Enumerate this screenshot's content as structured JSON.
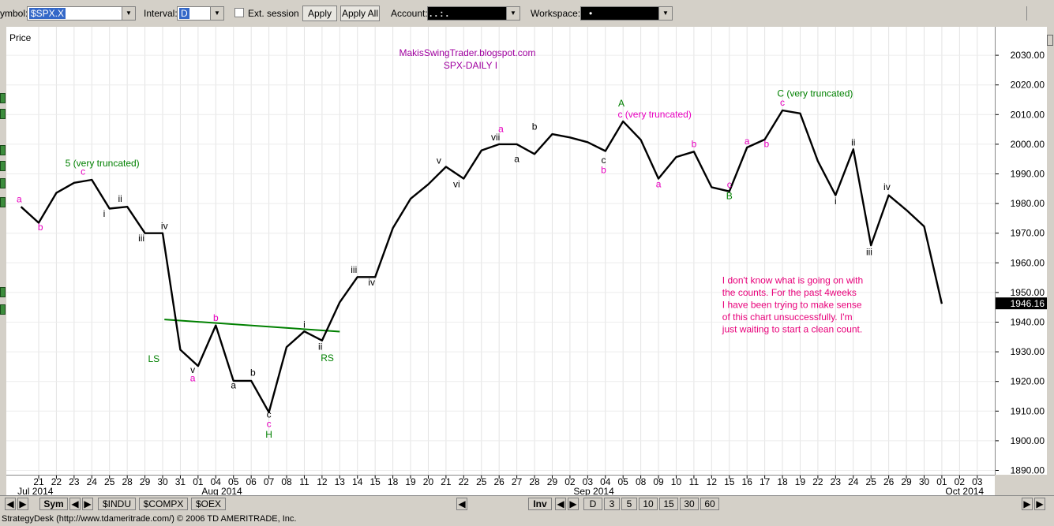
{
  "toolbar": {
    "symbol_label": "ymbol:",
    "symbol_value": "$SPX.X",
    "interval_label": "Interval:",
    "interval_value": "D",
    "ext_session_label": "Ext. session",
    "apply_label": "Apply",
    "apply_all_label": "Apply All",
    "account_label": "Account:",
    "account_value": ". .   :   .",
    "workspace_label": "Workspace:",
    "workspace_value": "•"
  },
  "chart_data": {
    "type": "line",
    "title": "MakisSwingTrader.blogspot.com",
    "subtitle": "SPX-DAILY  I",
    "ylabel": "Price",
    "ylim": [
      1886,
      2040
    ],
    "y_ticks": [
      1890,
      1900,
      1910,
      1920,
      1930,
      1940,
      1950,
      1960,
      1970,
      1980,
      1990,
      2000,
      2010,
      2020,
      2030
    ],
    "y_tick_labels": [
      "1890.00",
      "1900.00",
      "1910.00",
      "1920.00",
      "1930.00",
      "1940.00",
      "1950.00",
      "1960.00",
      "1970.00",
      "1980.00",
      "1990.00",
      "2000.00",
      "2010.00",
      "2020.00",
      "2030.00"
    ],
    "last_price_label": "1946.16",
    "x_labels": [
      "21",
      "22",
      "23",
      "24",
      "25",
      "28",
      "29",
      "30",
      "31",
      "01",
      "04",
      "05",
      "06",
      "07",
      "08",
      "11",
      "12",
      "13",
      "14",
      "15",
      "18",
      "19",
      "20",
      "21",
      "22",
      "25",
      "26",
      "27",
      "28",
      "29",
      "02",
      "03",
      "04",
      "05",
      "08",
      "09",
      "10",
      "11",
      "12",
      "15",
      "16",
      "17",
      "18",
      "19",
      "22",
      "23",
      "24",
      "25",
      "26",
      "29",
      "30",
      "01",
      "02",
      "03"
    ],
    "month_labels": [
      {
        "label": "Jul 2014",
        "index": -1.2
      },
      {
        "label": "Aug 2014",
        "index": 9.2
      },
      {
        "label": "Sep 2014",
        "index": 30.2
      },
      {
        "label": "Oct 2014",
        "index": 51.2
      }
    ],
    "series": [
      {
        "values": [
          {
            "i": -1,
            "v": 1978.9
          },
          {
            "i": 0,
            "v": 1973.5
          },
          {
            "i": 1,
            "v": 1983.6
          },
          {
            "i": 2,
            "v": 1987.0
          },
          {
            "i": 3,
            "v": 1988.0
          },
          {
            "i": 4,
            "v": 1978.3
          },
          {
            "i": 5,
            "v": 1978.9
          },
          {
            "i": 6,
            "v": 1970.0
          },
          {
            "i": 7,
            "v": 1970.0
          },
          {
            "i": 8,
            "v": 1930.7
          },
          {
            "i": 9,
            "v": 1925.2
          },
          {
            "i": 10,
            "v": 1938.9
          },
          {
            "i": 11,
            "v": 1920.2
          },
          {
            "i": 12,
            "v": 1920.2
          },
          {
            "i": 13,
            "v": 1909.6
          },
          {
            "i": 14,
            "v": 1931.6
          },
          {
            "i": 15,
            "v": 1936.9
          },
          {
            "i": 16,
            "v": 1933.8
          },
          {
            "i": 17,
            "v": 1946.7
          },
          {
            "i": 18,
            "v": 1955.2
          },
          {
            "i": 19,
            "v": 1955.2
          },
          {
            "i": 20,
            "v": 1971.7
          },
          {
            "i": 21,
            "v": 1981.6
          },
          {
            "i": 22,
            "v": 1986.5
          },
          {
            "i": 23,
            "v": 1992.4
          },
          {
            "i": 24,
            "v": 1988.4
          },
          {
            "i": 25,
            "v": 1997.9
          },
          {
            "i": 26,
            "v": 2000.0
          },
          {
            "i": 27,
            "v": 2000.0
          },
          {
            "i": 28,
            "v": 1996.7
          },
          {
            "i": 29,
            "v": 2003.4
          },
          {
            "i": 30,
            "v": 2002.3
          },
          {
            "i": 31,
            "v": 2000.7
          },
          {
            "i": 32,
            "v": 1997.7
          },
          {
            "i": 33,
            "v": 2007.7
          },
          {
            "i": 34,
            "v": 2001.5
          },
          {
            "i": 35,
            "v": 1988.4
          },
          {
            "i": 36,
            "v": 1995.7
          },
          {
            "i": 37,
            "v": 1997.5
          },
          {
            "i": 38,
            "v": 1985.5
          },
          {
            "i": 39,
            "v": 1984.1
          },
          {
            "i": 40,
            "v": 1998.9
          },
          {
            "i": 41,
            "v": 2001.6
          },
          {
            "i": 42,
            "v": 2011.4
          },
          {
            "i": 43,
            "v": 2010.4
          },
          {
            "i": 44,
            "v": 1994.3
          },
          {
            "i": 45,
            "v": 1982.8
          },
          {
            "i": 46,
            "v": 1998.3
          },
          {
            "i": 47,
            "v": 1965.9
          },
          {
            "i": 48,
            "v": 1982.8
          },
          {
            "i": 49,
            "v": 1977.8
          },
          {
            "i": 50,
            "v": 1972.3
          },
          {
            "i": 51,
            "v": 1946.2
          }
        ]
      }
    ],
    "trendline": {
      "from": {
        "i": 7.1,
        "v": 1940.9
      },
      "to": {
        "i": 17.0,
        "v": 1936.8
      }
    },
    "wave_labels": [
      {
        "text": "a",
        "i": -1.1,
        "v": 1980.4,
        "color": "#e800c0"
      },
      {
        "text": "b",
        "i": 0.1,
        "v": 1971.0,
        "color": "#e800c0"
      },
      {
        "text": "5 (very truncated)",
        "i": 1.5,
        "v": 1992.5,
        "color": "#008000",
        "anchor": "start"
      },
      {
        "text": "c",
        "i": 2.5,
        "v": 1989.8,
        "color": "#e800c0"
      },
      {
        "text": "i",
        "i": 3.7,
        "v": 1975.5,
        "color": "#000000"
      },
      {
        "text": "ii",
        "i": 4.6,
        "v": 1980.6,
        "color": "#000000"
      },
      {
        "text": "iii",
        "i": 5.8,
        "v": 1967.2,
        "color": "#000000"
      },
      {
        "text": "iv",
        "i": 7.1,
        "v": 1971.4,
        "color": "#000000"
      },
      {
        "text": "LS",
        "i": 6.5,
        "v": 1926.6,
        "color": "#008000"
      },
      {
        "text": "v",
        "i": 8.7,
        "v": 1922.9,
        "color": "#000000"
      },
      {
        "text": "a",
        "i": 8.7,
        "v": 1920.1,
        "color": "#e800c0"
      },
      {
        "text": "b",
        "i": 10.0,
        "v": 1940.4,
        "color": "#e800c0"
      },
      {
        "text": "a",
        "i": 11.0,
        "v": 1917.7,
        "color": "#000000"
      },
      {
        "text": "b",
        "i": 12.1,
        "v": 1921.9,
        "color": "#000000"
      },
      {
        "text": "c",
        "i": 13.0,
        "v": 1907.8,
        "color": "#000000"
      },
      {
        "text": "c",
        "i": 13.0,
        "v": 1904.6,
        "color": "#e800c0"
      },
      {
        "text": "H",
        "i": 13.0,
        "v": 1901.0,
        "color": "#008000"
      },
      {
        "text": "i",
        "i": 15.0,
        "v": 1938.2,
        "color": "#000000"
      },
      {
        "text": "ii",
        "i": 15.9,
        "v": 1930.7,
        "color": "#000000"
      },
      {
        "text": "RS",
        "i": 16.3,
        "v": 1926.9,
        "color": "#008000"
      },
      {
        "text": "iii",
        "i": 17.8,
        "v": 1956.6,
        "color": "#000000"
      },
      {
        "text": "iv",
        "i": 18.8,
        "v": 1952.4,
        "color": "#000000"
      },
      {
        "text": "v",
        "i": 22.6,
        "v": 1993.5,
        "color": "#000000"
      },
      {
        "text": "vi",
        "i": 23.6,
        "v": 1985.5,
        "color": "#000000"
      },
      {
        "text": "a",
        "i": 26.1,
        "v": 2004.1,
        "color": "#e800c0"
      },
      {
        "text": "vii",
        "i": 25.8,
        "v": 2001.3,
        "color": "#000000"
      },
      {
        "text": "a",
        "i": 27.0,
        "v": 1994.0,
        "color": "#000000"
      },
      {
        "text": "b",
        "i": 28.0,
        "v": 2004.9,
        "color": "#000000"
      },
      {
        "text": "c",
        "i": 31.9,
        "v": 1993.6,
        "color": "#000000"
      },
      {
        "text": "b",
        "i": 31.9,
        "v": 1990.2,
        "color": "#e800c0"
      },
      {
        "text": "A",
        "i": 32.9,
        "v": 2012.8,
        "color": "#008000"
      },
      {
        "text": "c (very truncated)",
        "i": 32.7,
        "v": 2009.0,
        "color": "#e800c0",
        "anchor": "start"
      },
      {
        "text": "a",
        "i": 35.0,
        "v": 1985.5,
        "color": "#e800c0"
      },
      {
        "text": "b",
        "i": 37.0,
        "v": 1999.1,
        "color": "#e800c0"
      },
      {
        "text": "c",
        "i": 39.0,
        "v": 1985.3,
        "color": "#e800c0"
      },
      {
        "text": "B",
        "i": 39.0,
        "v": 1981.5,
        "color": "#008000"
      },
      {
        "text": "a",
        "i": 40.0,
        "v": 2000.0,
        "color": "#e800c0"
      },
      {
        "text": "b",
        "i": 41.1,
        "v": 1999.1,
        "color": "#e800c0"
      },
      {
        "text": "C (very truncated)",
        "i": 41.7,
        "v": 2016.0,
        "color": "#008000",
        "anchor": "start"
      },
      {
        "text": "c",
        "i": 42.0,
        "v": 2013.0,
        "color": "#e800c0"
      },
      {
        "text": "i",
        "i": 45.0,
        "v": 1979.8,
        "color": "#000000"
      },
      {
        "text": "ii",
        "i": 46.0,
        "v": 1999.6,
        "color": "#000000"
      },
      {
        "text": "iii",
        "i": 46.9,
        "v": 1962.6,
        "color": "#000000"
      },
      {
        "text": "iv",
        "i": 47.9,
        "v": 1984.5,
        "color": "#000000"
      }
    ],
    "annotation": {
      "lines": [
        "I don't know what is going on with",
        "the counts. For the past 4weeks",
        "I have been trying to make sense",
        "of this chart unsuccessfully. I'm",
        "just waiting to start a clean count."
      ],
      "color": "#e8007a",
      "i": 38.6,
      "v": 1953
    },
    "grid": true,
    "colors": {
      "line": "#000000",
      "trend": "#008000",
      "pink": "#e800c0",
      "green": "#008000"
    }
  },
  "bottombar": {
    "sym_label": "Sym",
    "tabs": [
      "$INDU",
      "$COMPX",
      "$OEX"
    ],
    "inv_label": "Inv",
    "intervals": [
      "D",
      "3",
      "5",
      "10",
      "15",
      "30",
      "60"
    ]
  },
  "status": {
    "text": "StrategyDesk (http://www.tdameritrade.com/) © 2006 TD AMERITRADE, Inc."
  }
}
